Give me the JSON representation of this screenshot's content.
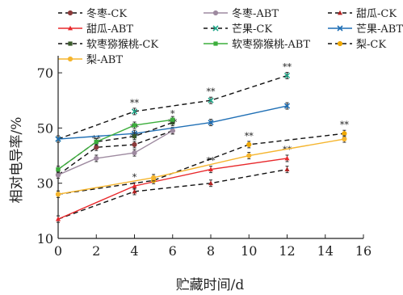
{
  "chart_data": {
    "type": "line",
    "xlabel": "贮藏时间/d",
    "ylabel": "相对电导率/%",
    "xlim": [
      0,
      16
    ],
    "ylim": [
      10,
      75
    ],
    "xticks": [
      0,
      2,
      4,
      6,
      8,
      10,
      12,
      14,
      16
    ],
    "yticks": [
      10,
      30,
      50,
      70
    ],
    "grid": false,
    "legend": "top",
    "series": [
      {
        "name": "冬枣-CK",
        "color": "#8B3A3A",
        "dash": true,
        "marker": "o",
        "x": [
          0,
          2,
          4,
          6
        ],
        "y": [
          33,
          43,
          44,
          49
        ],
        "sig": [
          "",
          "**",
          "**",
          "**"
        ]
      },
      {
        "name": "冬枣-ABT",
        "color": "#9E8AA0",
        "dash": false,
        "marker": "o",
        "x": [
          0,
          2,
          4,
          6
        ],
        "y": [
          33,
          39,
          41,
          49
        ],
        "sig": [
          "",
          "",
          "",
          ""
        ]
      },
      {
        "name": "甜瓜-CK",
        "color": "#b22222",
        "dash": true,
        "marker": "^",
        "x": [
          0,
          4,
          8,
          12
        ],
        "y": [
          17,
          27,
          30,
          35
        ],
        "sig": [
          "",
          "",
          "",
          ""
        ]
      },
      {
        "name": "甜瓜-ABT",
        "color": "#e8282b",
        "dash": false,
        "marker": "^",
        "x": [
          0,
          4,
          8,
          12
        ],
        "y": [
          17,
          29,
          35,
          39
        ],
        "sig": [
          "",
          "*",
          "**",
          "**"
        ]
      },
      {
        "name": "芒果-CK",
        "color": "#20a88a",
        "dash": true,
        "marker": "x",
        "x": [
          0,
          4,
          8,
          12
        ],
        "y": [
          46,
          56,
          60,
          69
        ],
        "sig": [
          "",
          "**",
          "**",
          "**"
        ]
      },
      {
        "name": "芒果-ABT",
        "color": "#1f6fb5",
        "dash": false,
        "marker": "x",
        "x": [
          0,
          4,
          8,
          12
        ],
        "y": [
          46,
          48,
          52,
          58
        ],
        "sig": [
          "",
          "",
          "",
          ""
        ]
      },
      {
        "name": "软枣猕猴桃-CK",
        "color": "#3a5a2a",
        "dash": true,
        "marker": "s",
        "x": [
          0,
          2,
          4,
          6
        ],
        "y": [
          35,
          45,
          47,
          52
        ],
        "sig": [
          "",
          "",
          "**",
          "*"
        ]
      },
      {
        "name": "软枣猕猴桃-ABT",
        "color": "#3cae3c",
        "dash": false,
        "marker": "s",
        "x": [
          0,
          2,
          4,
          6
        ],
        "y": [
          35,
          45,
          51,
          53
        ],
        "sig": [
          "",
          "",
          "",
          ""
        ]
      },
      {
        "name": "梨-CK",
        "color": "#f0a800",
        "dash": true,
        "marker": "o",
        "x": [
          0,
          5,
          10,
          15
        ],
        "y": [
          26,
          31,
          44,
          48
        ],
        "sig": [
          "",
          "",
          "**",
          "**"
        ]
      },
      {
        "name": "梨-ABT",
        "color": "#f5b52e",
        "dash": false,
        "marker": "o",
        "x": [
          0,
          5,
          10,
          15
        ],
        "y": [
          26,
          32,
          40,
          46
        ],
        "sig": [
          "",
          "",
          "",
          ""
        ]
      }
    ]
  }
}
